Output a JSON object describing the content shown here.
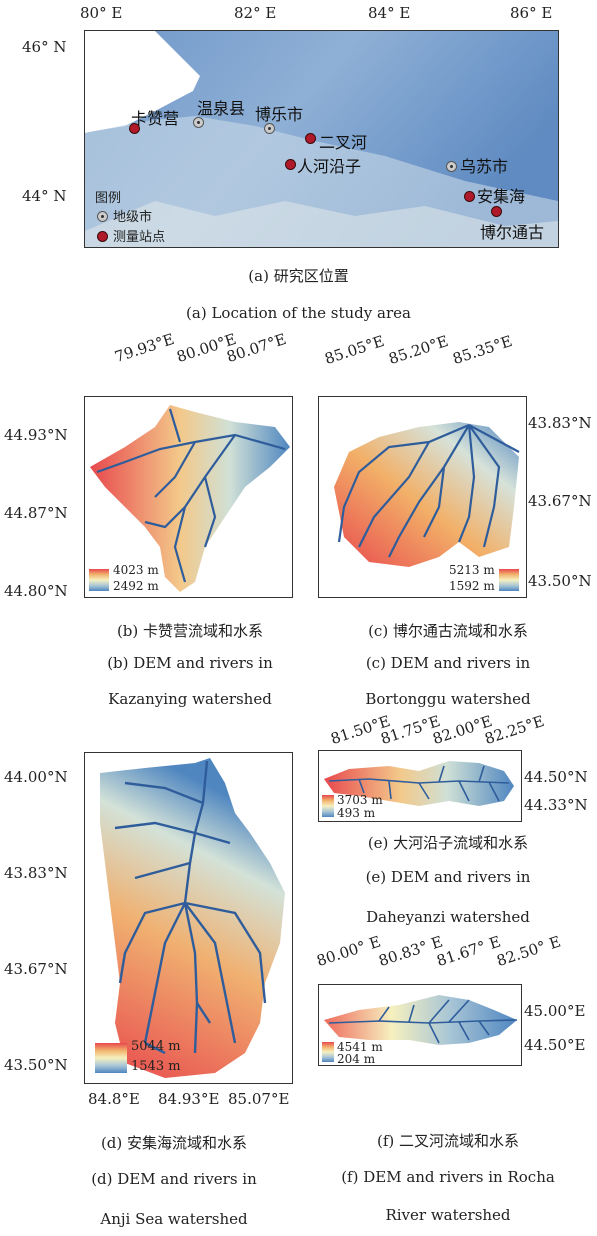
{
  "panel_a": {
    "x_ticks": [
      "80° E",
      "82° E",
      "84° E",
      "86° E"
    ],
    "y_ticks": [
      "46° N",
      "44° N"
    ],
    "places": {
      "kazanying": "卡赞营",
      "wenquan": "温泉县",
      "bole": "博乐市",
      "erchahe": "二叉河",
      "renheyanzi": "人河沿子",
      "wusu": "乌苏市",
      "anjihai": "安集海",
      "bortonggu": "博尔通古"
    },
    "legend": {
      "title": "图例",
      "city": "地级市",
      "station": "测量站点"
    },
    "caption_cn": "(a) 研究区位置",
    "caption_en": "(a) Location of the study area"
  },
  "panel_b": {
    "x_ticks": [
      "79.93°E",
      "80.00°E",
      "80.07°E"
    ],
    "y_ticks": [
      "44.93°N",
      "44.87°N",
      "44.80°N"
    ],
    "elev_high": "4023 m",
    "elev_low": "2492 m",
    "caption_cn": "(b) 卡赞营流域和水系",
    "caption_en1": "(b) DEM and rivers in",
    "caption_en2": "Kazanying watershed"
  },
  "panel_c": {
    "x_ticks": [
      "85.05°E",
      "85.20°E",
      "85.35°E"
    ],
    "y_ticks": [
      "43.83°N",
      "43.67°N",
      "43.50°N"
    ],
    "elev_high": "5213 m",
    "elev_low": "1592 m",
    "caption_cn": "(c) 博尔通古流域和水系",
    "caption_en1": "(c) DEM and rivers in",
    "caption_en2": "Bortonggu watershed"
  },
  "panel_d": {
    "x_ticks": [
      "84.8°E",
      "84.93°E",
      "85.07°E"
    ],
    "y_ticks": [
      "44.00°N",
      "43.83°N",
      "43.67°N",
      "43.50°N"
    ],
    "elev_high": "5044 m",
    "elev_low": "1543 m",
    "caption_cn": "(d) 安集海流域和水系",
    "caption_en1": "(d) DEM and rivers in",
    "caption_en2": "Anji Sea watershed"
  },
  "panel_e": {
    "x_ticks": [
      "81.50°E",
      "81.75°E",
      "82.00°E",
      "82.25°E"
    ],
    "y_ticks": [
      "44.50°N",
      "44.33°N"
    ],
    "elev_high": "3703 m",
    "elev_low": "493 m",
    "caption_cn": "(e) 大河沿子流域和水系",
    "caption_en1": "(e) DEM and rivers in",
    "caption_en2": "Daheyanzi watershed"
  },
  "panel_f": {
    "x_ticks": [
      "80.00° E",
      "80.83° E",
      "81.67° E",
      "82.50° E"
    ],
    "y_ticks": [
      "45.00°E",
      "44.50°E"
    ],
    "elev_high": "4541 m",
    "elev_low": "204 m",
    "caption_cn": "(f) 二叉河流域和水系",
    "caption_en1": "(f) DEM and rivers in Rocha",
    "caption_en2": "River watershed"
  },
  "colors": {
    "high": "#e8484d",
    "mid": "#f6f0bf",
    "low": "#4f86c0",
    "river": "#2f5d9c"
  }
}
